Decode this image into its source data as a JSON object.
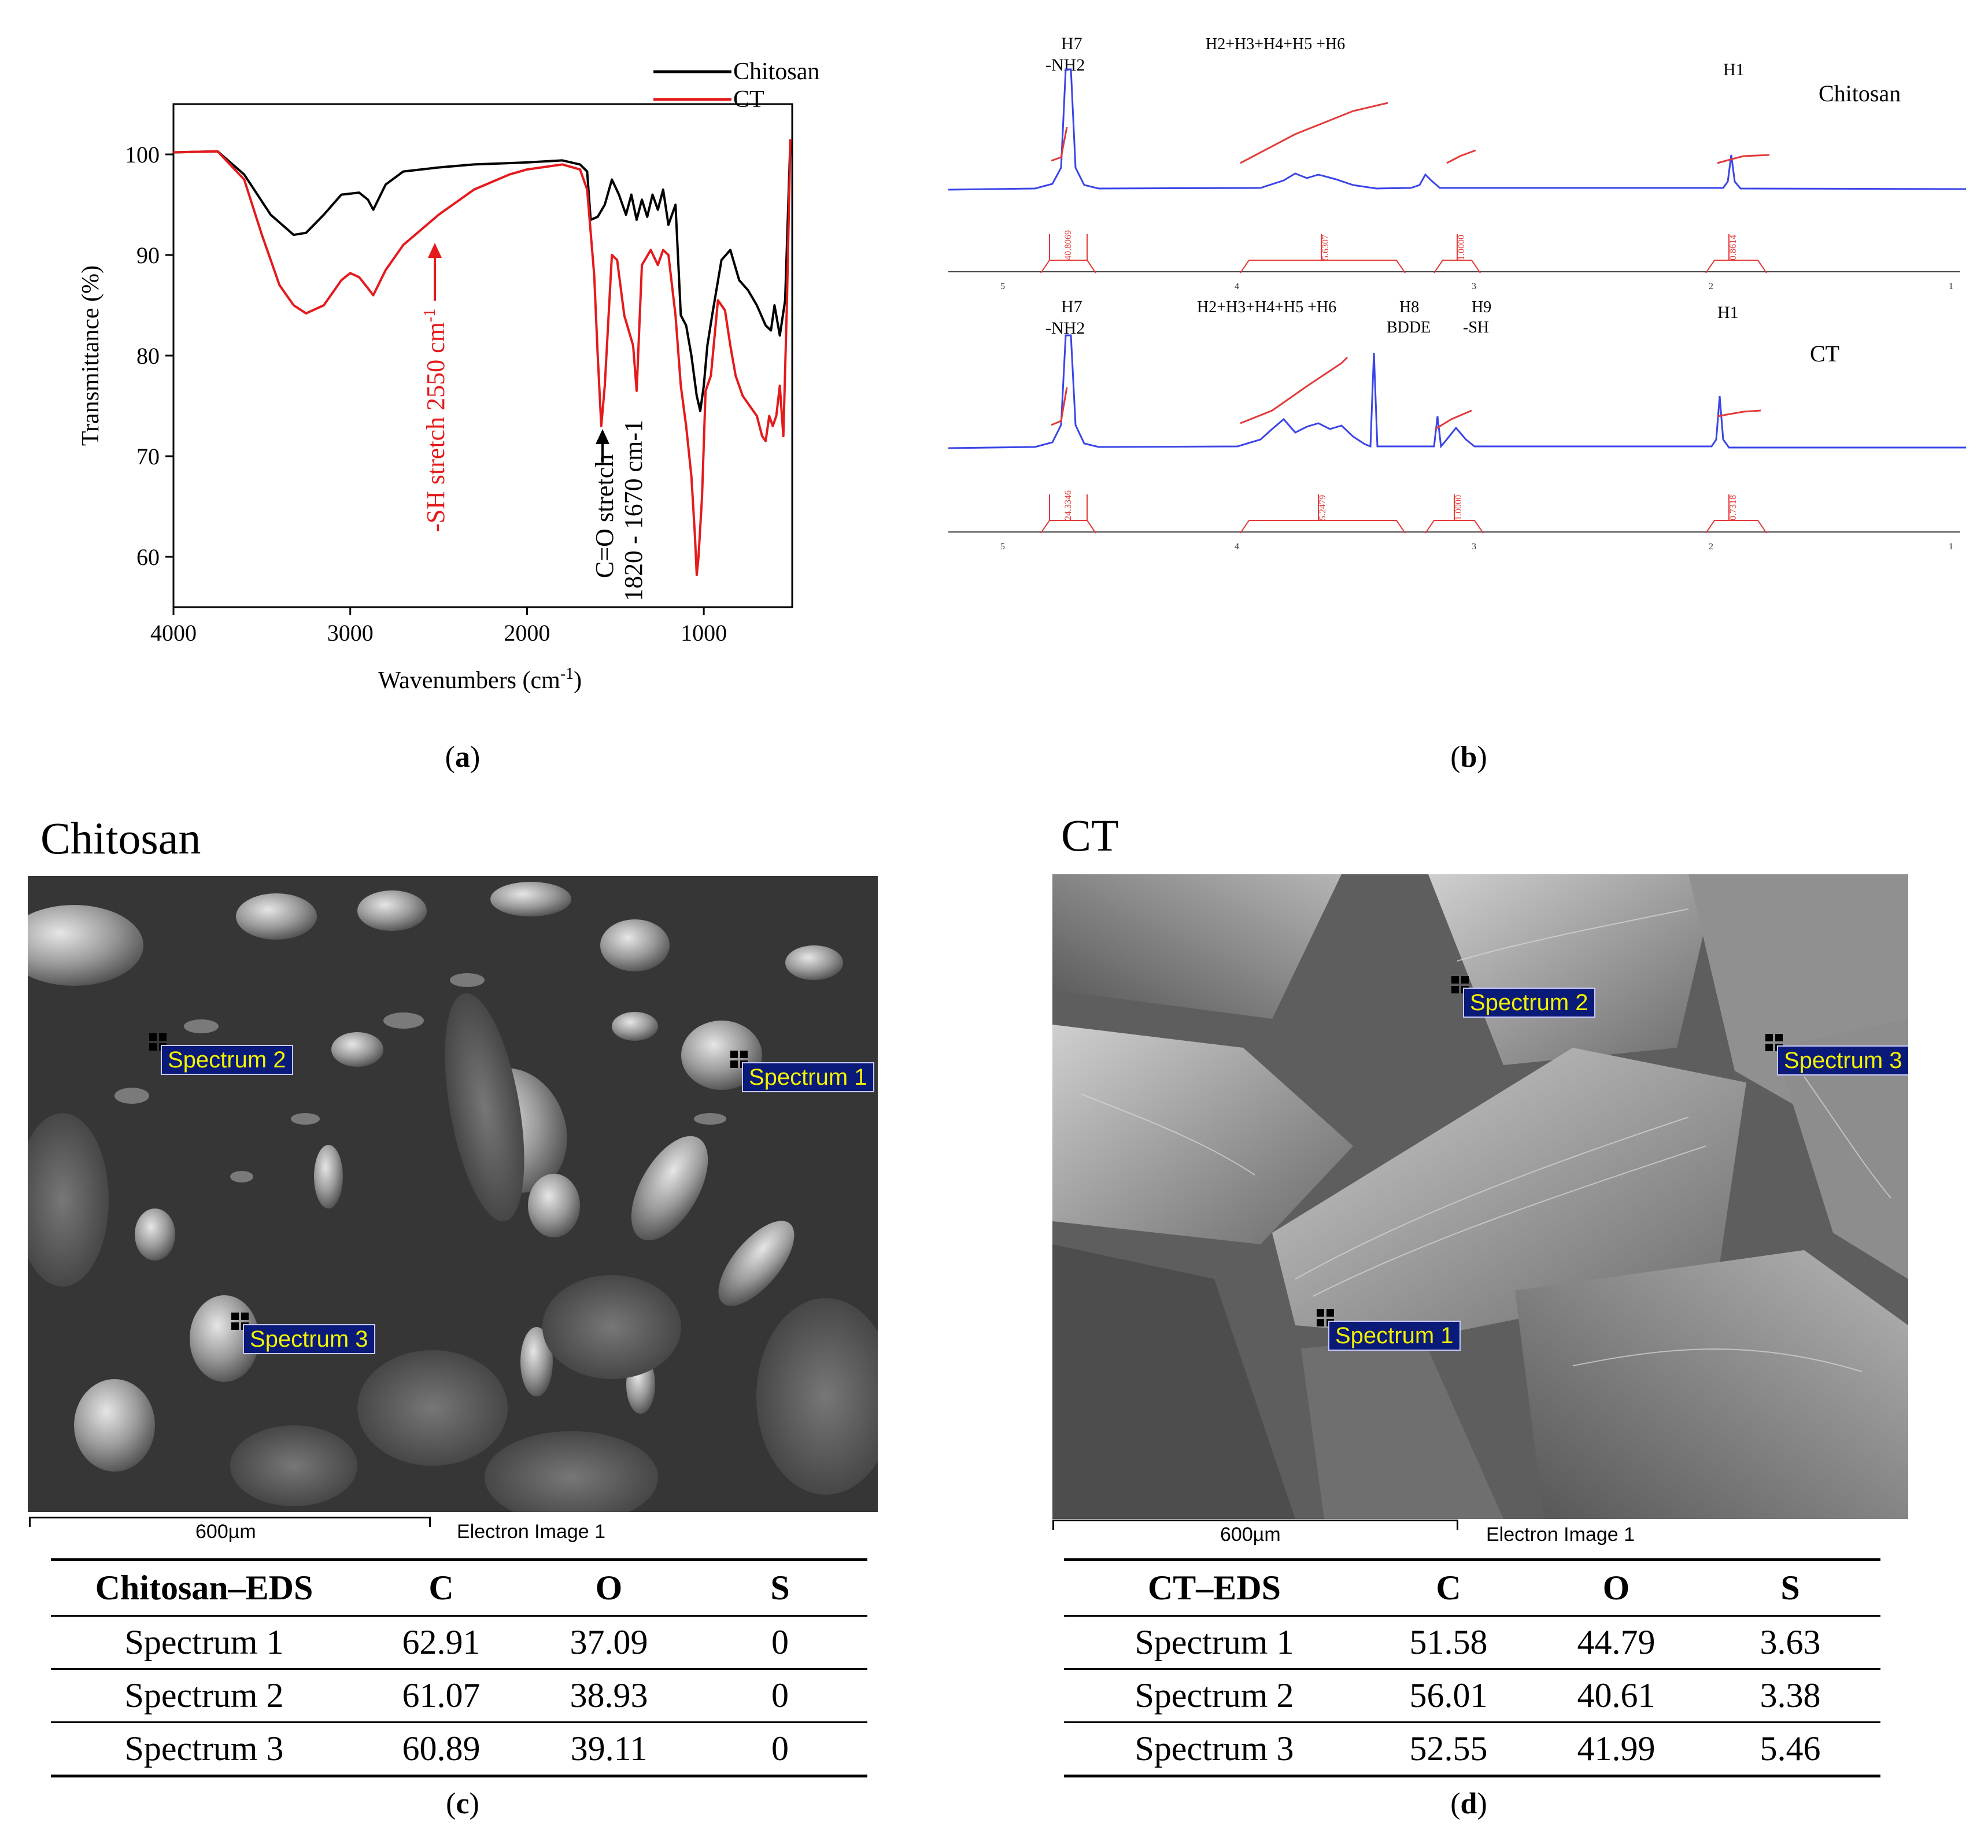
{
  "panel_a": {
    "label": "a",
    "chart_data": {
      "type": "line",
      "title": "",
      "xlabel": "Wavenumbers (cm-1)",
      "ylabel": "Transmittance (%)",
      "xlim": [
        4000,
        500
      ],
      "ylim": [
        55,
        105
      ],
      "xticks": [
        "4000",
        "3000",
        "2000",
        "1000"
      ],
      "yticks": [
        "60",
        "70",
        "80",
        "90",
        "100"
      ],
      "legend": [
        "Chitosan",
        "CT"
      ],
      "series": [
        {
          "name": "Chitosan",
          "color": "#000000",
          "x": [
            4000,
            3750,
            3600,
            3450,
            3320,
            3250,
            3150,
            3050,
            2950,
            2900,
            2870,
            2800,
            2700,
            2500,
            2300,
            2000,
            1800,
            1700,
            1660,
            1640,
            1600,
            1560,
            1520,
            1480,
            1440,
            1410,
            1380,
            1350,
            1320,
            1290,
            1260,
            1230,
            1200,
            1160,
            1130,
            1100,
            1070,
            1040,
            1020,
            1000,
            980,
            950,
            900,
            850,
            800,
            750,
            700,
            650,
            620,
            600,
            570,
            540,
            510
          ],
          "y": [
            100.2,
            100.3,
            98,
            94,
            92,
            92.2,
            94,
            96,
            96.2,
            95.5,
            94.5,
            97,
            98.3,
            98.7,
            99,
            99.2,
            99.4,
            99,
            98.3,
            93.5,
            93.8,
            95,
            97.5,
            96,
            94,
            96,
            93.5,
            95.5,
            93.8,
            96,
            94.5,
            96.5,
            93,
            95,
            84,
            83,
            80,
            76,
            74.5,
            77,
            81,
            84.3,
            89.5,
            90.5,
            87.5,
            86.5,
            85,
            83,
            82.5,
            85,
            82,
            85.5,
            101.5
          ]
        },
        {
          "name": "CT",
          "color": "#e41a1c",
          "x": [
            4000,
            3750,
            3600,
            3500,
            3400,
            3320,
            3250,
            3150,
            3050,
            3000,
            2950,
            2900,
            2870,
            2800,
            2700,
            2600,
            2500,
            2300,
            2100,
            2000,
            1800,
            1700,
            1660,
            1620,
            1600,
            1580,
            1560,
            1520,
            1490,
            1450,
            1400,
            1380,
            1350,
            1300,
            1260,
            1230,
            1200,
            1160,
            1130,
            1100,
            1070,
            1050,
            1040,
            1030,
            1010,
            990,
            960,
            920,
            880,
            850,
            820,
            780,
            740,
            700,
            670,
            650,
            630,
            610,
            590,
            570,
            550,
            530,
            510
          ],
          "y": [
            100.2,
            100.3,
            97.5,
            92,
            87,
            85,
            84.2,
            85,
            87.5,
            88.2,
            87.8,
            86.7,
            86,
            88.5,
            91,
            92.5,
            94,
            96.5,
            98,
            98.5,
            99,
            98.5,
            96.5,
            88,
            80,
            73,
            77,
            90,
            89.5,
            84,
            81,
            76.5,
            89,
            90.5,
            89,
            90.5,
            90,
            84,
            77,
            73,
            68,
            62,
            58.2,
            60,
            66,
            76.5,
            78,
            85.5,
            84.5,
            81,
            78,
            76,
            75,
            74,
            72,
            71.5,
            74,
            73,
            74,
            77,
            72,
            85,
            101.5
          ]
        }
      ],
      "annotations": [
        "-SH stretch 2550 cm-1",
        "C=O stretch",
        "1820 - 1670 cm-1"
      ]
    }
  },
  "panel_b": {
    "label": "b",
    "spectra": [
      {
        "name": "Chitosan",
        "peak_labels": [
          "H7",
          "-NH2",
          "H2+H3+H4+H5 +H6",
          "H1"
        ],
        "integrals": [
          "40.8069",
          "5.6307",
          "1.0000",
          "0.8614"
        ]
      },
      {
        "name": "CT",
        "peak_labels": [
          "H7",
          "-NH2",
          "H2+H3+H4+H5 +H6",
          "H8",
          "BDDE",
          "H9",
          "-SH",
          "H1"
        ],
        "integrals": [
          "24.3346",
          "5.2479",
          "1.0000",
          "0.7318"
        ]
      }
    ],
    "axis_ticks": [
      "5",
      "4",
      "3",
      "2",
      "1"
    ]
  },
  "panel_c": {
    "label": "c",
    "title": "Chitosan",
    "scale_bar": "600µm",
    "image_label": "Electron Image 1",
    "spectrum_tags": [
      "Spectrum 1",
      "Spectrum 2",
      "Spectrum 3"
    ],
    "table": {
      "headers": [
        "Chitosan–EDS",
        "C",
        "O",
        "S"
      ],
      "rows": [
        [
          "Spectrum 1",
          "62.91",
          "37.09",
          "0"
        ],
        [
          "Spectrum 2",
          "61.07",
          "38.93",
          "0"
        ],
        [
          "Spectrum 3",
          "60.89",
          "39.11",
          "0"
        ]
      ]
    }
  },
  "panel_d": {
    "label": "d",
    "title": "CT",
    "scale_bar": "600µm",
    "image_label": "Electron Image 1",
    "spectrum_tags": [
      "Spectrum 1",
      "Spectrum 2",
      "Spectrum 3"
    ],
    "table": {
      "headers": [
        "CT–EDS",
        "C",
        "O",
        "S"
      ],
      "rows": [
        [
          "Spectrum 1",
          "51.58",
          "44.79",
          "3.63"
        ],
        [
          "Spectrum 2",
          "56.01",
          "40.61",
          "3.38"
        ],
        [
          "Spectrum 3",
          "52.55",
          "41.99",
          "5.46"
        ]
      ]
    }
  }
}
